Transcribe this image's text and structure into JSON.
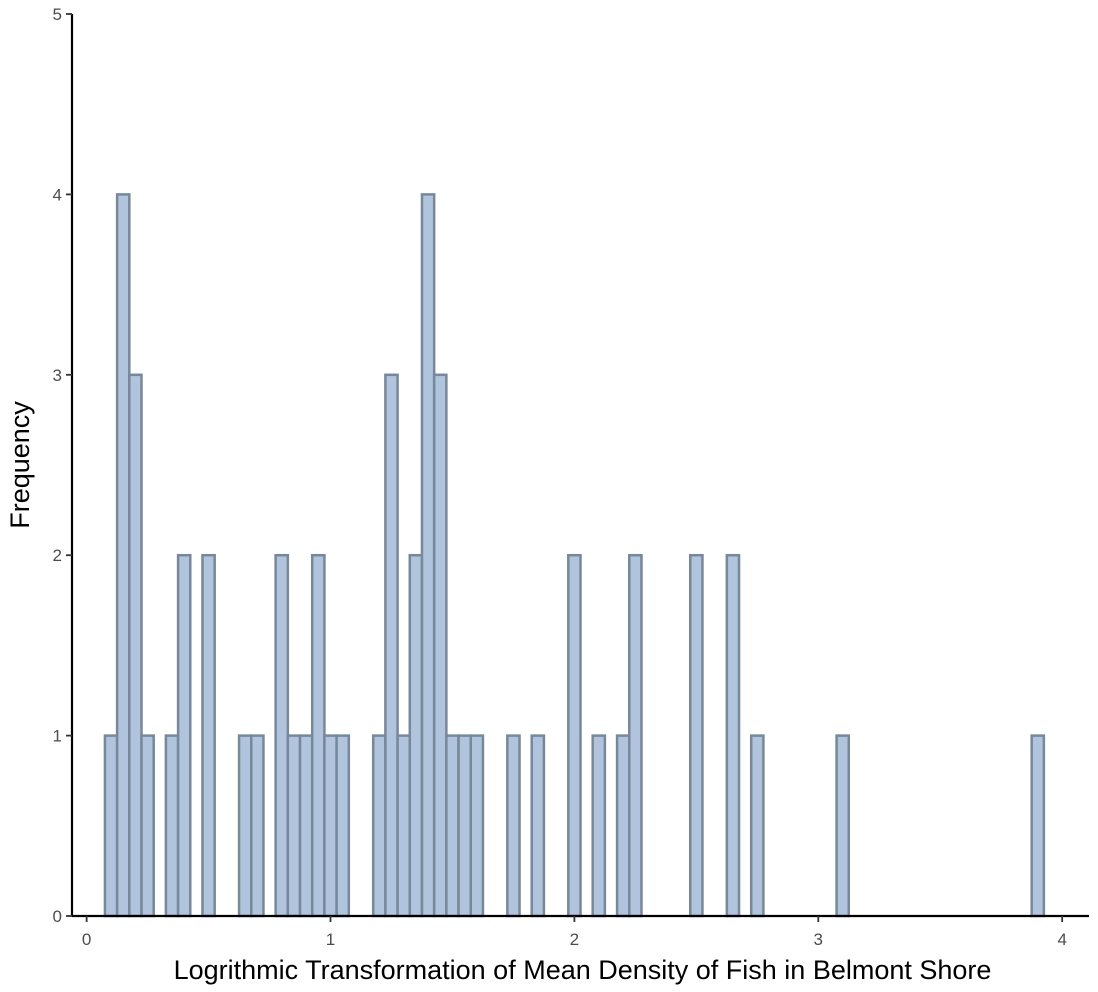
{
  "chart_data": {
    "type": "bar",
    "title": "",
    "xlabel": "Logrithmic Transformation of Mean Density of Fish in Belmont Shore",
    "ylabel": "Frequency",
    "xlim": [
      -0.06,
      4.11
    ],
    "ylim": [
      0,
      5
    ],
    "x_ticks": [
      0,
      1,
      2,
      3,
      4
    ],
    "y_ticks": [
      0,
      1,
      2,
      3,
      4,
      5
    ],
    "bin_width": 0.05,
    "grid": false,
    "legend": "none",
    "bins": [
      {
        "x": 0.1,
        "count": 1
      },
      {
        "x": 0.15,
        "count": 4
      },
      {
        "x": 0.2,
        "count": 3
      },
      {
        "x": 0.25,
        "count": 1
      },
      {
        "x": 0.35,
        "count": 1
      },
      {
        "x": 0.4,
        "count": 2
      },
      {
        "x": 0.5,
        "count": 2
      },
      {
        "x": 0.65,
        "count": 1
      },
      {
        "x": 0.7,
        "count": 1
      },
      {
        "x": 0.8,
        "count": 2
      },
      {
        "x": 0.85,
        "count": 1
      },
      {
        "x": 0.9,
        "count": 1
      },
      {
        "x": 0.95,
        "count": 2
      },
      {
        "x": 1.0,
        "count": 1
      },
      {
        "x": 1.05,
        "count": 1
      },
      {
        "x": 1.2,
        "count": 1
      },
      {
        "x": 1.25,
        "count": 3
      },
      {
        "x": 1.3,
        "count": 1
      },
      {
        "x": 1.35,
        "count": 2
      },
      {
        "x": 1.4,
        "count": 4
      },
      {
        "x": 1.45,
        "count": 3
      },
      {
        "x": 1.5,
        "count": 1
      },
      {
        "x": 1.55,
        "count": 1
      },
      {
        "x": 1.6,
        "count": 1
      },
      {
        "x": 1.75,
        "count": 1
      },
      {
        "x": 1.85,
        "count": 1
      },
      {
        "x": 2.0,
        "count": 2
      },
      {
        "x": 2.1,
        "count": 1
      },
      {
        "x": 2.2,
        "count": 1
      },
      {
        "x": 2.25,
        "count": 2
      },
      {
        "x": 2.5,
        "count": 2
      },
      {
        "x": 2.65,
        "count": 2
      },
      {
        "x": 2.75,
        "count": 1
      },
      {
        "x": 3.1,
        "count": 1
      },
      {
        "x": 3.9,
        "count": 1
      }
    ]
  },
  "colors": {
    "bar_fill": "#b0c4de",
    "bar_stroke": "#778899",
    "axis": "#000000",
    "tick_text": "#4d4d4d"
  }
}
